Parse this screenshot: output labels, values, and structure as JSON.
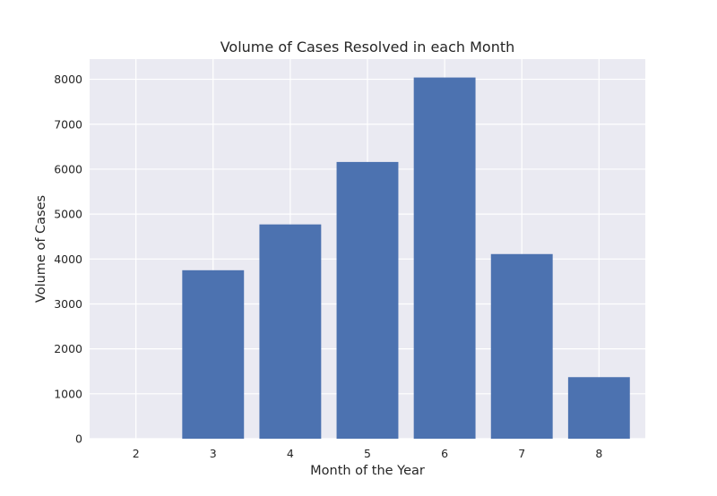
{
  "chart_data": {
    "type": "bar",
    "title": "Volume of Cases Resolved in each Month",
    "xlabel": "Month of the Year",
    "ylabel": "Volume of Cases",
    "categories": [
      "2",
      "3",
      "4",
      "5",
      "6",
      "7",
      "8"
    ],
    "x": [
      2,
      3,
      4,
      5,
      6,
      7,
      8
    ],
    "values": [
      0,
      3750,
      4770,
      6160,
      8040,
      4110,
      1370
    ],
    "xlim": [
      1.4,
      8.6
    ],
    "ylim": [
      0,
      8450
    ],
    "yticks": [
      0,
      1000,
      2000,
      3000,
      4000,
      5000,
      6000,
      7000,
      8000
    ],
    "ytick_labels": [
      "0",
      "1000",
      "2000",
      "3000",
      "4000",
      "5000",
      "6000",
      "7000",
      "8000"
    ],
    "grid": true,
    "style": "seaborn-darkgrid",
    "colors": {
      "bar": "#4c72b0",
      "plot_background": "#eaeaf2",
      "grid": "#ffffff",
      "text": "#262626"
    }
  }
}
